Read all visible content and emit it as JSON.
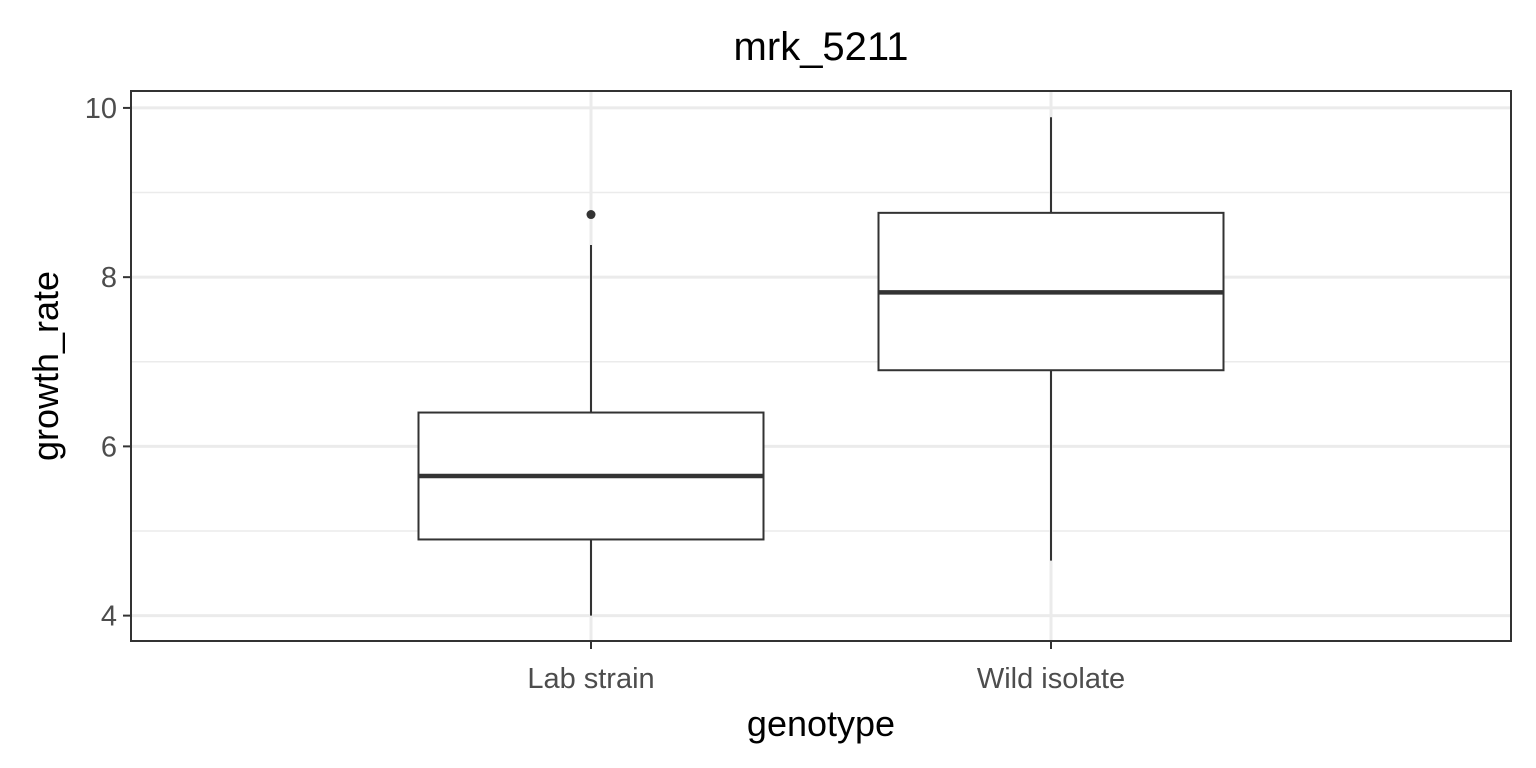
{
  "chart_data": {
    "type": "box",
    "title": "mrk_5211",
    "xlabel": "genotype",
    "ylabel": "growth_rate",
    "categories": [
      "Lab strain",
      "Wild isolate"
    ],
    "ylim": [
      3.7,
      10.2
    ],
    "yticks": [
      4,
      6,
      8,
      10
    ],
    "grid": true,
    "boxes": [
      {
        "category": "Lab strain",
        "whisker_low": 4.0,
        "q1": 4.9,
        "median": 5.65,
        "q3": 6.4,
        "whisker_high": 8.38,
        "outliers": [
          8.74
        ]
      },
      {
        "category": "Wild isolate",
        "whisker_low": 4.65,
        "q1": 6.9,
        "median": 7.82,
        "q3": 8.76,
        "whisker_high": 9.89,
        "outliers": []
      }
    ],
    "colors": {
      "box_fill": "#ffffff",
      "box_stroke": "#333333",
      "grid": "#ebebeb",
      "panel_border": "#333333"
    }
  }
}
